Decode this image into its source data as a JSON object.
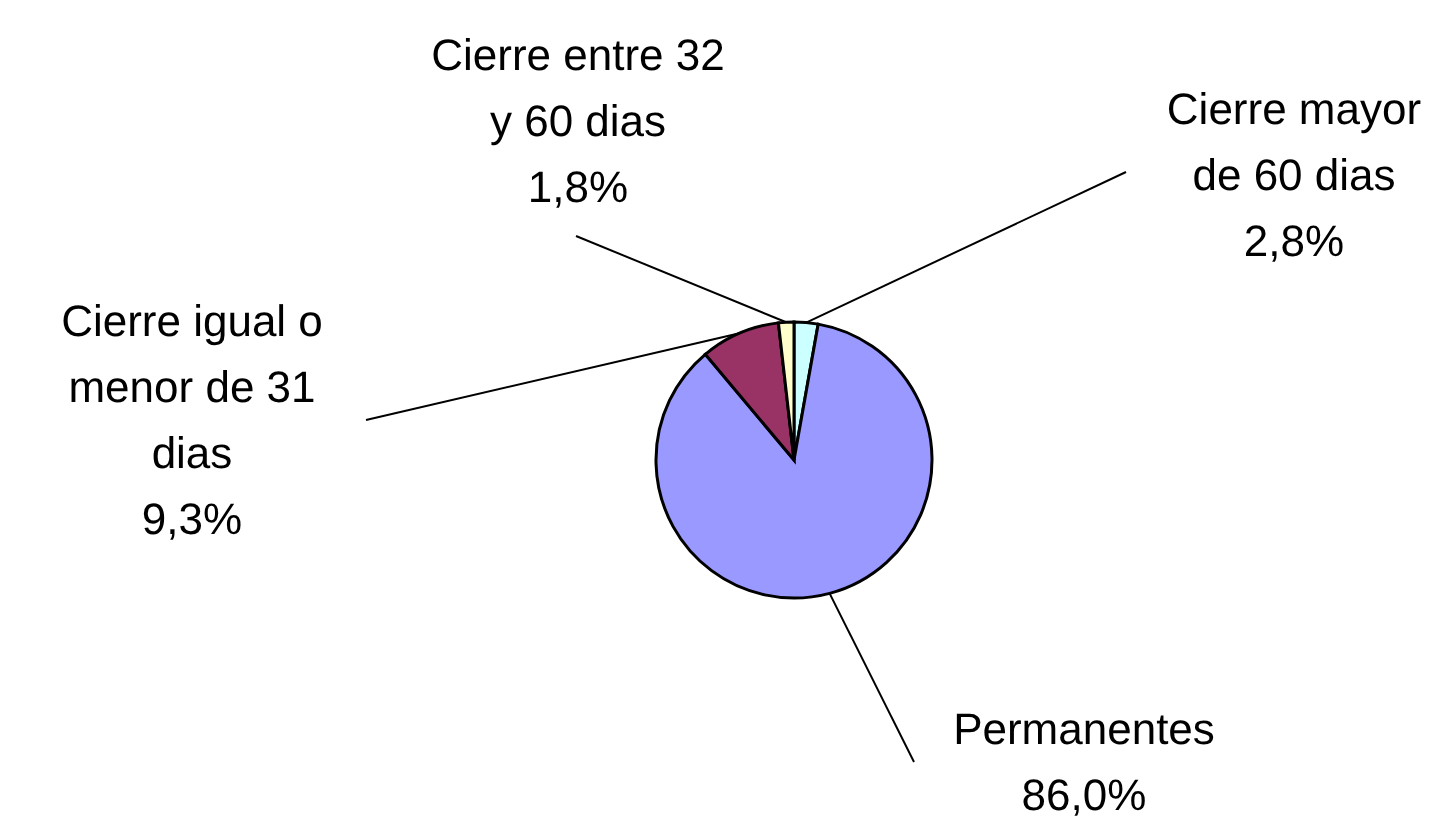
{
  "chart_data": {
    "type": "pie",
    "categories": [
      "Cierre mayor de 60 dias",
      "Permanentes",
      "Cierre igual o menor de 31 dias",
      "Cierre entre 32 y 60 dias"
    ],
    "values": [
      2.8,
      86.0,
      9.3,
      1.8
    ],
    "value_labels": [
      "2,8%",
      "86,0%",
      "9,3%",
      "1,8%"
    ],
    "colors": [
      "#ccffff",
      "#9999ff",
      "#993366",
      "#ffffcc"
    ]
  }
}
